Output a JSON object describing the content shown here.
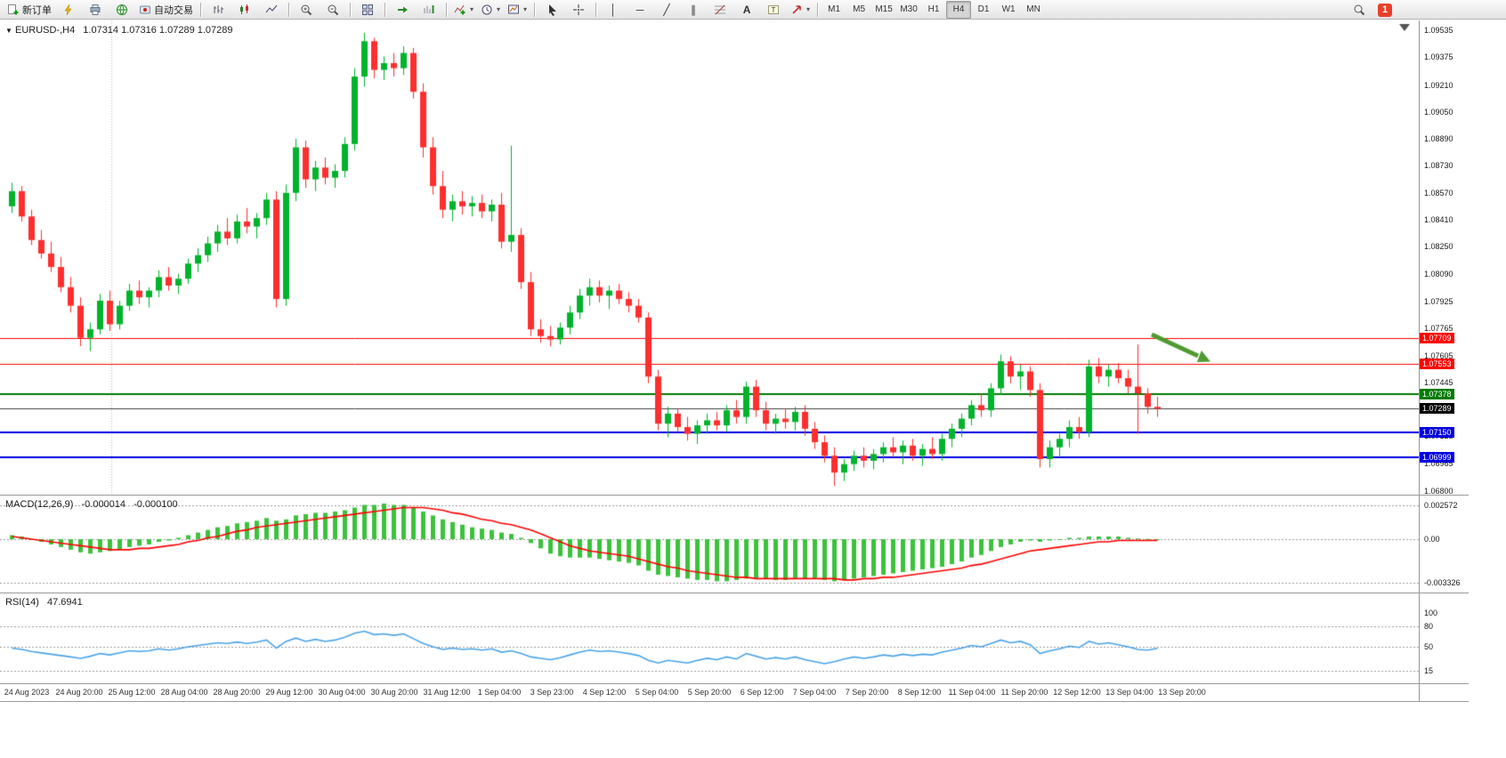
{
  "window": {
    "symbol_period": "EURUSD-,H4",
    "ohlc_text": "1.07314 1.07316 1.07289 1.07289"
  },
  "toolbar": {
    "new_order_label": "新订单",
    "autotrading_label": "自动交易",
    "notification_badge": "1",
    "tool_glyphs": {
      "vertical_line": "│",
      "horizontal_line": "─",
      "trendline": "╱",
      "channel": "∥",
      "text": "A",
      "dropdown": "▾"
    },
    "timeframes": [
      {
        "label": "M1",
        "active": false
      },
      {
        "label": "M5",
        "active": false
      },
      {
        "label": "M15",
        "active": false
      },
      {
        "label": "M30",
        "active": false
      },
      {
        "label": "H1",
        "active": false
      },
      {
        "label": "H4",
        "active": true
      },
      {
        "label": "D1",
        "active": false
      },
      {
        "label": "W1",
        "active": false
      },
      {
        "label": "MN",
        "active": false
      }
    ]
  },
  "indicators": {
    "macd": {
      "label": "MACD(12,26,9)",
      "value_main": "-0.000014",
      "value_signal": "-0.000100"
    },
    "rsi": {
      "label": "RSI(14)",
      "value": "47.6941"
    }
  },
  "colors": {
    "candle_up": "#00b32c",
    "candle_down": "#fe2e2e",
    "macd_hist": "#3cc23c",
    "macd_signal": "#ff0000",
    "rsi_line": "#4aa3e8",
    "arrow": "#4e9b30",
    "grid_dash": "#999999"
  },
  "chart_data": [
    {
      "type": "candlestick",
      "symbol": "EURUSD-",
      "timeframe": "H4",
      "y_range": [
        1.068,
        1.09535
      ],
      "y_ticks": [
        "1.09535",
        "1.09375",
        "1.09210",
        "1.09050",
        "1.08890",
        "1.08730",
        "1.08570",
        "1.08410",
        "1.08250",
        "1.08090",
        "1.07925",
        "1.07765",
        "1.07605",
        "1.07445",
        "1.07285",
        "1.07125",
        "1.06965",
        "1.06800"
      ],
      "levels": [
        {
          "label": "1.07709",
          "price": 1.07709,
          "color": "#ff0000",
          "width": 1
        },
        {
          "label": "1.07553",
          "price": 1.07553,
          "color": "#ff0000",
          "width": 1
        },
        {
          "label": "1.07378",
          "price": 1.07378,
          "color": "#007a00",
          "width": 2
        },
        {
          "label": "1.07289",
          "price": 1.07289,
          "color": "#404040",
          "width": 1,
          "tag": "#000000"
        },
        {
          "label": "1.07150",
          "price": 1.0715,
          "color": "#0000e0",
          "width": 2
        },
        {
          "label": "1.06999",
          "price": 1.06999,
          "color": "#0000e0",
          "width": 2
        }
      ],
      "x_labels": [
        "24 Aug 2023",
        "24 Aug 20:00",
        "25 Aug 12:00",
        "28 Aug 04:00",
        "28 Aug 20:00",
        "29 Aug 12:00",
        "30 Aug 04:00",
        "30 Aug 20:00",
        "31 Aug 12:00",
        "1 Sep 04:00",
        "3 Sep 23:00",
        "4 Sep 12:00",
        "5 Sep 04:00",
        "5 Sep 20:00",
        "6 Sep 12:00",
        "7 Sep 04:00",
        "7 Sep 20:00",
        "8 Sep 12:00",
        "11 Sep 04:00",
        "11 Sep 20:00",
        "12 Sep 12:00",
        "13 Sep 04:00",
        "13 Sep 20:00"
      ],
      "ohlc": [
        [
          1.0849,
          1.0863,
          1.0845,
          1.0858
        ],
        [
          1.0858,
          1.0861,
          1.084,
          1.0843
        ],
        [
          1.0843,
          1.0847,
          1.0826,
          1.0829
        ],
        [
          1.0829,
          1.0835,
          1.0818,
          1.0821
        ],
        [
          1.0821,
          1.0828,
          1.081,
          1.0813
        ],
        [
          1.0813,
          1.0819,
          1.0798,
          1.0801
        ],
        [
          1.0801,
          1.0807,
          1.0786,
          1.079
        ],
        [
          1.079,
          1.0795,
          1.0766,
          1.0771
        ],
        [
          1.0771,
          1.078,
          1.0763,
          1.0776
        ],
        [
          1.0776,
          1.0797,
          1.0773,
          1.0793
        ],
        [
          1.0793,
          1.0799,
          1.0775,
          1.0779
        ],
        [
          1.0779,
          1.0793,
          1.0776,
          1.079
        ],
        [
          1.079,
          1.0803,
          1.0787,
          1.0799
        ],
        [
          1.0799,
          1.0805,
          1.0791,
          1.0795
        ],
        [
          1.0795,
          1.0801,
          1.0789,
          1.0799
        ],
        [
          1.0799,
          1.0811,
          1.0795,
          1.0807
        ],
        [
          1.0807,
          1.0813,
          1.0799,
          1.0802
        ],
        [
          1.0802,
          1.0809,
          1.0797,
          1.0806
        ],
        [
          1.0806,
          1.0818,
          1.0803,
          1.0815
        ],
        [
          1.0815,
          1.0824,
          1.081,
          1.082
        ],
        [
          1.082,
          1.0831,
          1.0816,
          1.0827
        ],
        [
          1.0827,
          1.0838,
          1.0822,
          1.0834
        ],
        [
          1.0834,
          1.0842,
          1.0826,
          1.083
        ],
        [
          1.083,
          1.0844,
          1.0827,
          1.084
        ],
        [
          1.084,
          1.0848,
          1.0833,
          1.0837
        ],
        [
          1.0837,
          1.0845,
          1.083,
          1.0842
        ],
        [
          1.0842,
          1.0857,
          1.0838,
          1.0853
        ],
        [
          1.0853,
          1.0858,
          1.0789,
          1.0794
        ],
        [
          1.0794,
          1.0862,
          1.079,
          1.0857
        ],
        [
          1.0857,
          1.0889,
          1.0852,
          1.0884
        ],
        [
          1.0884,
          1.0888,
          1.086,
          1.0865
        ],
        [
          1.0865,
          1.0876,
          1.0858,
          1.0872
        ],
        [
          1.0872,
          1.0878,
          1.0862,
          1.0866
        ],
        [
          1.0866,
          1.0874,
          1.086,
          1.087
        ],
        [
          1.087,
          1.089,
          1.0866,
          1.0886
        ],
        [
          1.0886,
          1.0931,
          1.0882,
          1.0926
        ],
        [
          1.0926,
          1.0952,
          1.092,
          1.0947
        ],
        [
          1.0947,
          1.0949,
          1.0925,
          1.093
        ],
        [
          1.093,
          1.0938,
          1.0924,
          1.0934
        ],
        [
          1.0934,
          1.094,
          1.0926,
          1.0931
        ],
        [
          1.0931,
          1.0944,
          1.0927,
          1.094
        ],
        [
          1.094,
          1.0943,
          1.0913,
          1.0917
        ],
        [
          1.0917,
          1.0922,
          1.0878,
          1.0884
        ],
        [
          1.0884,
          1.089,
          1.0856,
          1.0861
        ],
        [
          1.0861,
          1.087,
          1.0842,
          1.0847
        ],
        [
          1.0847,
          1.0856,
          1.084,
          1.0852
        ],
        [
          1.0852,
          1.0858,
          1.0844,
          1.0849
        ],
        [
          1.0849,
          1.0855,
          1.0843,
          1.0851
        ],
        [
          1.0851,
          1.0856,
          1.0842,
          1.0846
        ],
        [
          1.0846,
          1.0853,
          1.084,
          1.085
        ],
        [
          1.085,
          1.0857,
          1.0824,
          1.0828
        ],
        [
          1.0828,
          1.0885,
          1.0822,
          1.0832
        ],
        [
          1.0832,
          1.0836,
          1.08,
          1.0804
        ],
        [
          1.0804,
          1.081,
          1.0772,
          1.0776
        ],
        [
          1.0776,
          1.0782,
          1.0768,
          1.0772
        ],
        [
          1.0772,
          1.0778,
          1.0766,
          1.077
        ],
        [
          1.077,
          1.078,
          1.0767,
          1.0777
        ],
        [
          1.0777,
          1.079,
          1.0773,
          1.0786
        ],
        [
          1.0786,
          1.08,
          1.0782,
          1.0796
        ],
        [
          1.0796,
          1.0806,
          1.079,
          1.0801
        ],
        [
          1.0801,
          1.0805,
          1.0792,
          1.0796
        ],
        [
          1.0796,
          1.0802,
          1.0788,
          1.0799
        ],
        [
          1.0799,
          1.0803,
          1.0791,
          1.0794
        ],
        [
          1.0794,
          1.0798,
          1.0786,
          1.079
        ],
        [
          1.079,
          1.0794,
          1.078,
          1.0783
        ],
        [
          1.0783,
          1.0786,
          1.0744,
          1.0748
        ],
        [
          1.0748,
          1.0752,
          1.0716,
          1.072
        ],
        [
          1.072,
          1.073,
          1.0712,
          1.0726
        ],
        [
          1.0726,
          1.0729,
          1.0715,
          1.0718
        ],
        [
          1.0718,
          1.0724,
          1.071,
          1.0714
        ],
        [
          1.0714,
          1.0722,
          1.0708,
          1.0719
        ],
        [
          1.0719,
          1.0726,
          1.0714,
          1.0722
        ],
        [
          1.0722,
          1.0727,
          1.0716,
          1.0719
        ],
        [
          1.0719,
          1.0731,
          1.0715,
          1.0728
        ],
        [
          1.0728,
          1.0734,
          1.072,
          1.0724
        ],
        [
          1.0724,
          1.0745,
          1.072,
          1.0742
        ],
        [
          1.0742,
          1.0746,
          1.0724,
          1.0728
        ],
        [
          1.0728,
          1.0733,
          1.0716,
          1.072
        ],
        [
          1.072,
          1.0726,
          1.0714,
          1.0723
        ],
        [
          1.0723,
          1.0729,
          1.0717,
          1.0721
        ],
        [
          1.0721,
          1.073,
          1.0716,
          1.0727
        ],
        [
          1.0727,
          1.0731,
          1.0713,
          1.0717
        ],
        [
          1.0717,
          1.0721,
          1.0705,
          1.0709
        ],
        [
          1.0709,
          1.0713,
          1.0697,
          1.0701
        ],
        [
          1.0701,
          1.0706,
          1.0683,
          1.0691
        ],
        [
          1.0691,
          1.0699,
          1.0686,
          1.0696
        ],
        [
          1.0696,
          1.0704,
          1.0692,
          1.0701
        ],
        [
          1.0701,
          1.0706,
          1.0694,
          1.0698
        ],
        [
          1.0698,
          1.0705,
          1.0693,
          1.0702
        ],
        [
          1.0702,
          1.0709,
          1.0697,
          1.0706
        ],
        [
          1.0706,
          1.0712,
          1.07,
          1.0703
        ],
        [
          1.0703,
          1.071,
          1.0696,
          1.0707
        ],
        [
          1.0707,
          1.0711,
          1.0698,
          1.0701
        ],
        [
          1.0701,
          1.0708,
          1.0695,
          1.0705
        ],
        [
          1.0705,
          1.0712,
          1.0699,
          1.0702
        ],
        [
          1.0702,
          1.0714,
          1.0698,
          1.0711
        ],
        [
          1.0711,
          1.072,
          1.0706,
          1.0717
        ],
        [
          1.0717,
          1.0726,
          1.0712,
          1.0723
        ],
        [
          1.0723,
          1.0734,
          1.0719,
          1.0731
        ],
        [
          1.0731,
          1.0738,
          1.0724,
          1.0728
        ],
        [
          1.0728,
          1.0744,
          1.0724,
          1.0741
        ],
        [
          1.0741,
          1.0761,
          1.0737,
          1.0757
        ],
        [
          1.0757,
          1.076,
          1.0744,
          1.0748
        ],
        [
          1.0748,
          1.0755,
          1.074,
          1.0751
        ],
        [
          1.0751,
          1.0754,
          1.0736,
          1.074
        ],
        [
          1.074,
          1.0744,
          1.0694,
          1.0699
        ],
        [
          1.0699,
          1.071,
          1.0694,
          1.0706
        ],
        [
          1.0706,
          1.0714,
          1.07,
          1.0711
        ],
        [
          1.0711,
          1.0722,
          1.0706,
          1.0718
        ],
        [
          1.0718,
          1.0724,
          1.0711,
          1.0715
        ],
        [
          1.0715,
          1.0758,
          1.0712,
          1.0754
        ],
        [
          1.0754,
          1.0759,
          1.0744,
          1.0748
        ],
        [
          1.0748,
          1.0755,
          1.0742,
          1.0752
        ],
        [
          1.0752,
          1.0756,
          1.0744,
          1.0747
        ],
        [
          1.0747,
          1.0752,
          1.0738,
          1.0742
        ],
        [
          1.0742,
          1.0767,
          1.0714,
          1.0738
        ],
        [
          1.0738,
          1.0741,
          1.0726,
          1.073
        ],
        [
          1.073,
          1.0736,
          1.0724,
          1.07289
        ]
      ]
    },
    {
      "type": "bar",
      "name": "MACD",
      "params": "(12,26,9)",
      "value_scale": 0.0001,
      "y_range": [
        -0.003326,
        0.002572
      ],
      "y_ticks": [
        "0.002572",
        "0.00",
        "-0.003326"
      ],
      "histogram": [
        3,
        2,
        0,
        -2,
        -4,
        -6,
        -8,
        -10,
        -11,
        -10,
        -9,
        -8,
        -6,
        -5,
        -4,
        -2,
        -1,
        1,
        3,
        5,
        7,
        9,
        10,
        12,
        13,
        14,
        16,
        14,
        15,
        18,
        19,
        20,
        20,
        21,
        22,
        24,
        26,
        26,
        27,
        26,
        26,
        24,
        21,
        18,
        15,
        13,
        11,
        9,
        8,
        7,
        5,
        4,
        1,
        -3,
        -7,
        -11,
        -13,
        -14,
        -14,
        -14,
        -15,
        -16,
        -17,
        -18,
        -20,
        -24,
        -27,
        -28,
        -29,
        -30,
        -31,
        -31,
        -32,
        -32,
        -31,
        -30,
        -30,
        -30,
        -31,
        -31,
        -30,
        -30,
        -30,
        -31,
        -32,
        -31,
        -30,
        -29,
        -28,
        -27,
        -26,
        -25,
        -24,
        -23,
        -22,
        -21,
        -19,
        -17,
        -14,
        -12,
        -9,
        -6,
        -4,
        -2,
        -1,
        -2,
        -1,
        0,
        1,
        1,
        2,
        2,
        2,
        2,
        1,
        0.5,
        0.2,
        -0.14
      ],
      "signal": [
        2,
        1,
        0,
        -1,
        -2,
        -3,
        -4,
        -5,
        -6,
        -7,
        -8,
        -8,
        -8,
        -7,
        -7,
        -6,
        -5,
        -4,
        -2,
        -1,
        1,
        2,
        4,
        6,
        7,
        9,
        10,
        11,
        12,
        13,
        14,
        15,
        16,
        17,
        18,
        19,
        20,
        21,
        22,
        23,
        24,
        24,
        24,
        23,
        22,
        20,
        19,
        17,
        15,
        14,
        12,
        11,
        9,
        7,
        4,
        1,
        -2,
        -5,
        -7,
        -9,
        -10,
        -11,
        -12,
        -13,
        -15,
        -17,
        -19,
        -21,
        -22,
        -24,
        -25,
        -26,
        -27,
        -28,
        -29,
        -29,
        -30,
        -30,
        -30,
        -30,
        -30,
        -30,
        -30,
        -30,
        -30,
        -31,
        -31,
        -30,
        -30,
        -29,
        -29,
        -28,
        -27,
        -26,
        -25,
        -24,
        -23,
        -22,
        -20,
        -19,
        -17,
        -15,
        -13,
        -11,
        -9,
        -8,
        -7,
        -6,
        -5,
        -4,
        -3,
        -2,
        -2,
        -1,
        -1,
        -1,
        -1,
        -1
      ]
    },
    {
      "type": "line",
      "name": "RSI",
      "params": "(14)",
      "y_range": [
        0,
        100
      ],
      "y_ticks": [
        "100",
        "80",
        "50",
        "15"
      ],
      "levels": [
        80,
        50,
        15
      ],
      "values": [
        48,
        46,
        43,
        41,
        39,
        37,
        35,
        33,
        36,
        40,
        38,
        41,
        44,
        43,
        44,
        47,
        45,
        47,
        50,
        52,
        54,
        56,
        55,
        57,
        55,
        57,
        60,
        48,
        58,
        63,
        58,
        61,
        58,
        60,
        64,
        70,
        73,
        68,
        69,
        67,
        69,
        62,
        55,
        50,
        46,
        48,
        46,
        47,
        45,
        47,
        42,
        44,
        40,
        35,
        33,
        31,
        34,
        38,
        42,
        45,
        43,
        44,
        42,
        40,
        37,
        30,
        26,
        30,
        28,
        26,
        30,
        33,
        31,
        35,
        32,
        40,
        36,
        32,
        34,
        32,
        35,
        31,
        28,
        25,
        28,
        32,
        35,
        33,
        35,
        38,
        36,
        39,
        37,
        39,
        38,
        42,
        45,
        48,
        52,
        50,
        55,
        60,
        56,
        58,
        53,
        40,
        44,
        47,
        51,
        49,
        58,
        54,
        56,
        53,
        50,
        46,
        45,
        47.6941
      ]
    }
  ]
}
